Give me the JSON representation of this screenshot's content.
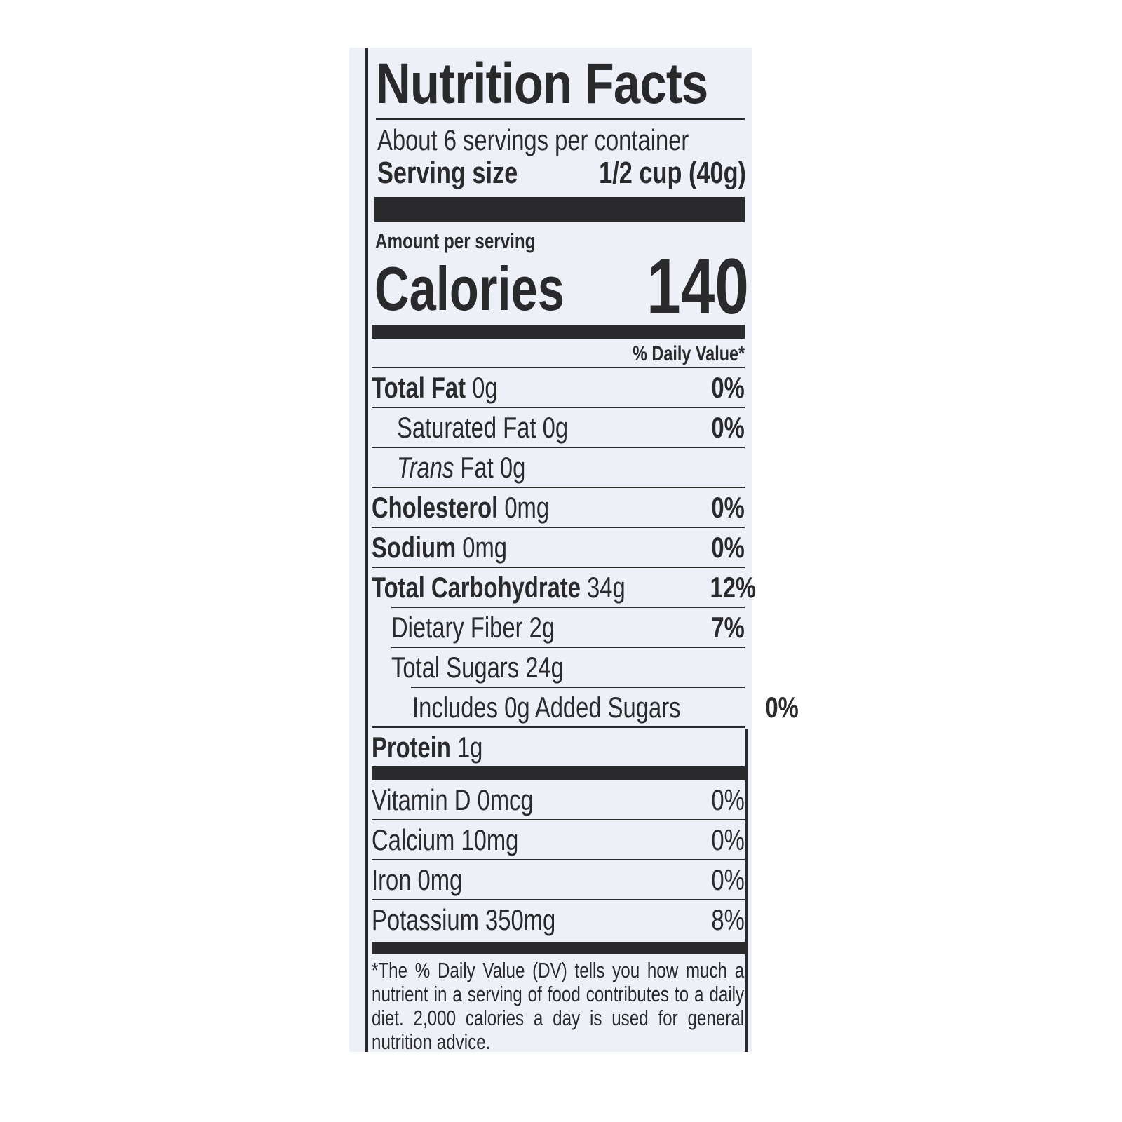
{
  "title": "Nutrition Facts",
  "servings_per_container": "About 6 servings per container",
  "serving_size_label": "Serving size",
  "serving_size_value": "1/2 cup (40g)",
  "amount_per_serving": "Amount per serving",
  "calories_label": "Calories",
  "calories_value": "140",
  "daily_value_header": "% Daily Value*",
  "nutrients": [
    {
      "name": "Total Fat",
      "amount": "0g",
      "dv": "0%"
    },
    {
      "name": "Saturated Fat",
      "amount": "0g",
      "dv": "0%"
    },
    {
      "name": "Trans",
      "name_suffix": "Fat",
      "amount": "0g",
      "dv": ""
    },
    {
      "name": "Cholesterol",
      "amount": "0mg",
      "dv": "0%"
    },
    {
      "name": "Sodium",
      "amount": "0mg",
      "dv": "0%"
    },
    {
      "name": "Total Carbohydrate",
      "amount": "34g",
      "dv": "12%"
    },
    {
      "name": "Dietary Fiber",
      "amount": "2g",
      "dv": "7%"
    },
    {
      "name": "Total Sugars",
      "amount": "24g",
      "dv": ""
    },
    {
      "name": "Includes 0g Added Sugars",
      "amount": "",
      "dv": "0%"
    },
    {
      "name": "Protein",
      "amount": "1g",
      "dv": ""
    }
  ],
  "vitamins": [
    {
      "name": "Vitamin D 0mcg",
      "dv": "0%"
    },
    {
      "name": "Calcium 10mg",
      "dv": "0%"
    },
    {
      "name": "Iron 0mg",
      "dv": "0%"
    },
    {
      "name": "Potassium 350mg",
      "dv": "8%"
    }
  ],
  "footnote": "*The % Daily Value (DV) tells you how much a nutrient in a serving of food contributes to a daily diet. 2,000 calories a day is used for general nutrition advice."
}
